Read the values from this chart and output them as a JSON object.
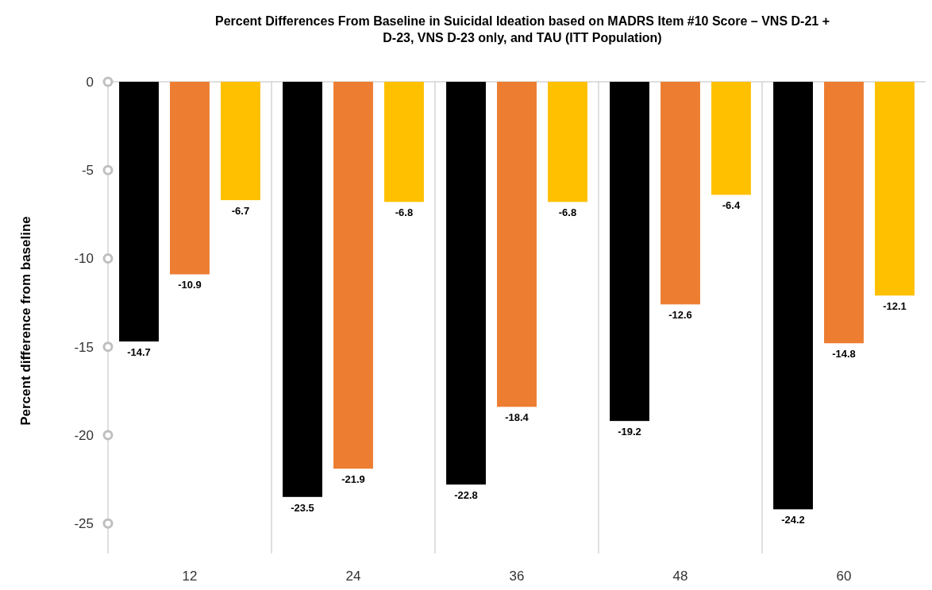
{
  "chart_data": {
    "type": "bar",
    "title": "Percent Differences From Baseline in Suicidal Ideation based on MADRS Item #10 Score – VNS D-21 + D-23, VNS D-23 only, and TAU (ITT Population)",
    "ylabel": "Percent difference from baseline",
    "categories": [
      "12",
      "24",
      "36",
      "48",
      "60"
    ],
    "series": [
      {
        "color": "#000000",
        "values": [
          -14.7,
          -23.5,
          -22.8,
          -19.2,
          -24.2
        ]
      },
      {
        "color": "#ed7d31",
        "values": [
          -10.9,
          -21.9,
          -18.4,
          -12.6,
          -14.8
        ]
      },
      {
        "color": "#ffc000",
        "values": [
          -6.7,
          -6.8,
          -6.8,
          -6.4,
          -12.1
        ]
      }
    ],
    "ylim": [
      -26.7,
      0
    ],
    "yticks": [
      0,
      -5,
      -10,
      -15,
      -20,
      -25
    ],
    "grid": "x",
    "data_labels": true
  }
}
